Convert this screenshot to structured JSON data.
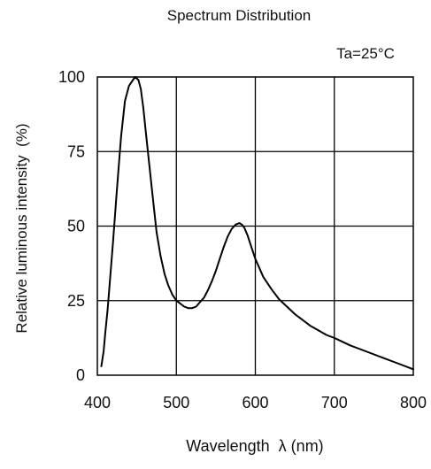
{
  "chart_data": {
    "type": "line",
    "title": "Spectrum Distribution",
    "condition_label": "Ta=25°C",
    "xlabel": "Wavelength  λ (nm)",
    "ylabel": "Relative luminous intensity  (%)",
    "xlim": [
      400,
      800
    ],
    "ylim": [
      0,
      100
    ],
    "x_ticks": [
      400,
      500,
      600,
      700,
      800
    ],
    "y_ticks": [
      0,
      25,
      50,
      75,
      100
    ],
    "x_tick_labels": [
      "400",
      "500",
      "600",
      "700",
      "800"
    ],
    "y_tick_labels": [
      "0",
      "25",
      "50",
      "75",
      "100"
    ],
    "grid": true,
    "line_color": "#000000",
    "series": [
      {
        "x": [
          405,
          408,
          410,
          413,
          416,
          420,
          425,
          430,
          435,
          440,
          445,
          448,
          452,
          455,
          458,
          462,
          466,
          470,
          475,
          480,
          485,
          490,
          495,
          500,
          505,
          510,
          515,
          520,
          525,
          530,
          535,
          540,
          545,
          550,
          555,
          560,
          565,
          570,
          575,
          580,
          583,
          586,
          590,
          595,
          600,
          605,
          610,
          620,
          630,
          640,
          650,
          660,
          670,
          680,
          690,
          700,
          720,
          740,
          760,
          780,
          800
        ],
        "y": [
          3,
          8,
          14,
          22,
          32,
          45,
          63,
          80,
          92,
          97,
          99,
          100,
          99,
          96,
          90,
          80,
          70,
          60,
          48,
          40,
          34,
          30,
          27,
          25,
          24,
          23,
          22.5,
          22.5,
          23,
          24.5,
          26,
          28.5,
          31.5,
          35,
          39,
          43,
          46.5,
          49,
          50.5,
          51,
          50.5,
          49.5,
          47,
          43,
          39,
          36,
          33,
          29,
          25.5,
          23,
          20.5,
          18.5,
          16.5,
          15,
          13.5,
          12.5,
          10,
          8,
          6,
          4,
          2
        ]
      }
    ]
  }
}
